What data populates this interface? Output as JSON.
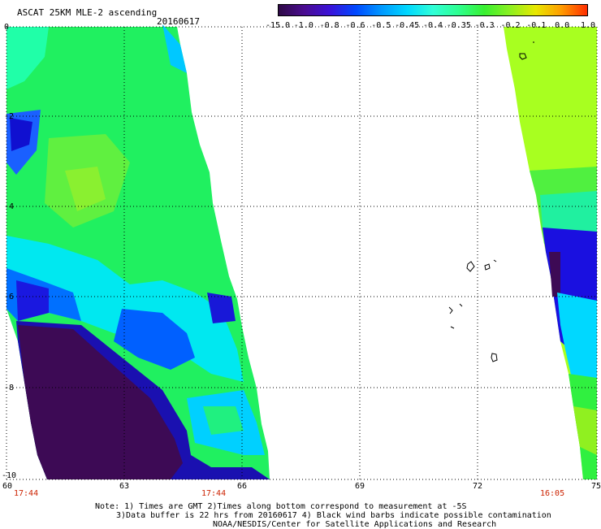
{
  "header": {
    "title": "ASCAT 25KM MLE-2 ascending",
    "date": "20160617"
  },
  "colorbar": {
    "labels": [
      "-15.0",
      "-1.0",
      "-0.8",
      "-0.6",
      "-0.5",
      "-0.45",
      "-0.4",
      "-0.35",
      "-0.3",
      "-0.2",
      "-0.1",
      "0.0",
      "1.0"
    ],
    "colors": [
      "#2e0a45",
      "#4a0c90",
      "#3a12d8",
      "#0048ff",
      "#0098ff",
      "#00d8ff",
      "#30ffd8",
      "#2dff90",
      "#38f030",
      "#8cf020",
      "#e8e800",
      "#ff9b00",
      "#ff2d00"
    ]
  },
  "axes": {
    "x_ticks": [
      "60",
      "63",
      "66",
      "69",
      "72",
      "75"
    ],
    "y_ticks": [
      "0",
      "-2",
      "-4",
      "-6",
      "-8",
      "-10"
    ]
  },
  "pass_times": {
    "left": "17:44",
    "mid": "17:44",
    "right": "16:05"
  },
  "notes": {
    "line1": "Note: 1) Times are GMT 2)Times along bottom correspond to measurement at -5S",
    "line2": "3)Data buffer is 22 hrs from 20160617 4) Black wind barbs indicate possible contamination",
    "line3": "NOAA/NESDIS/Center for Satellite Applications and Research"
  },
  "legend_palette": {
    "deep": "#3d0a55",
    "blue": "#1010e8",
    "cyan": "#00ffff",
    "green": "#30f040",
    "yellowgreen": "#a8ff20"
  }
}
